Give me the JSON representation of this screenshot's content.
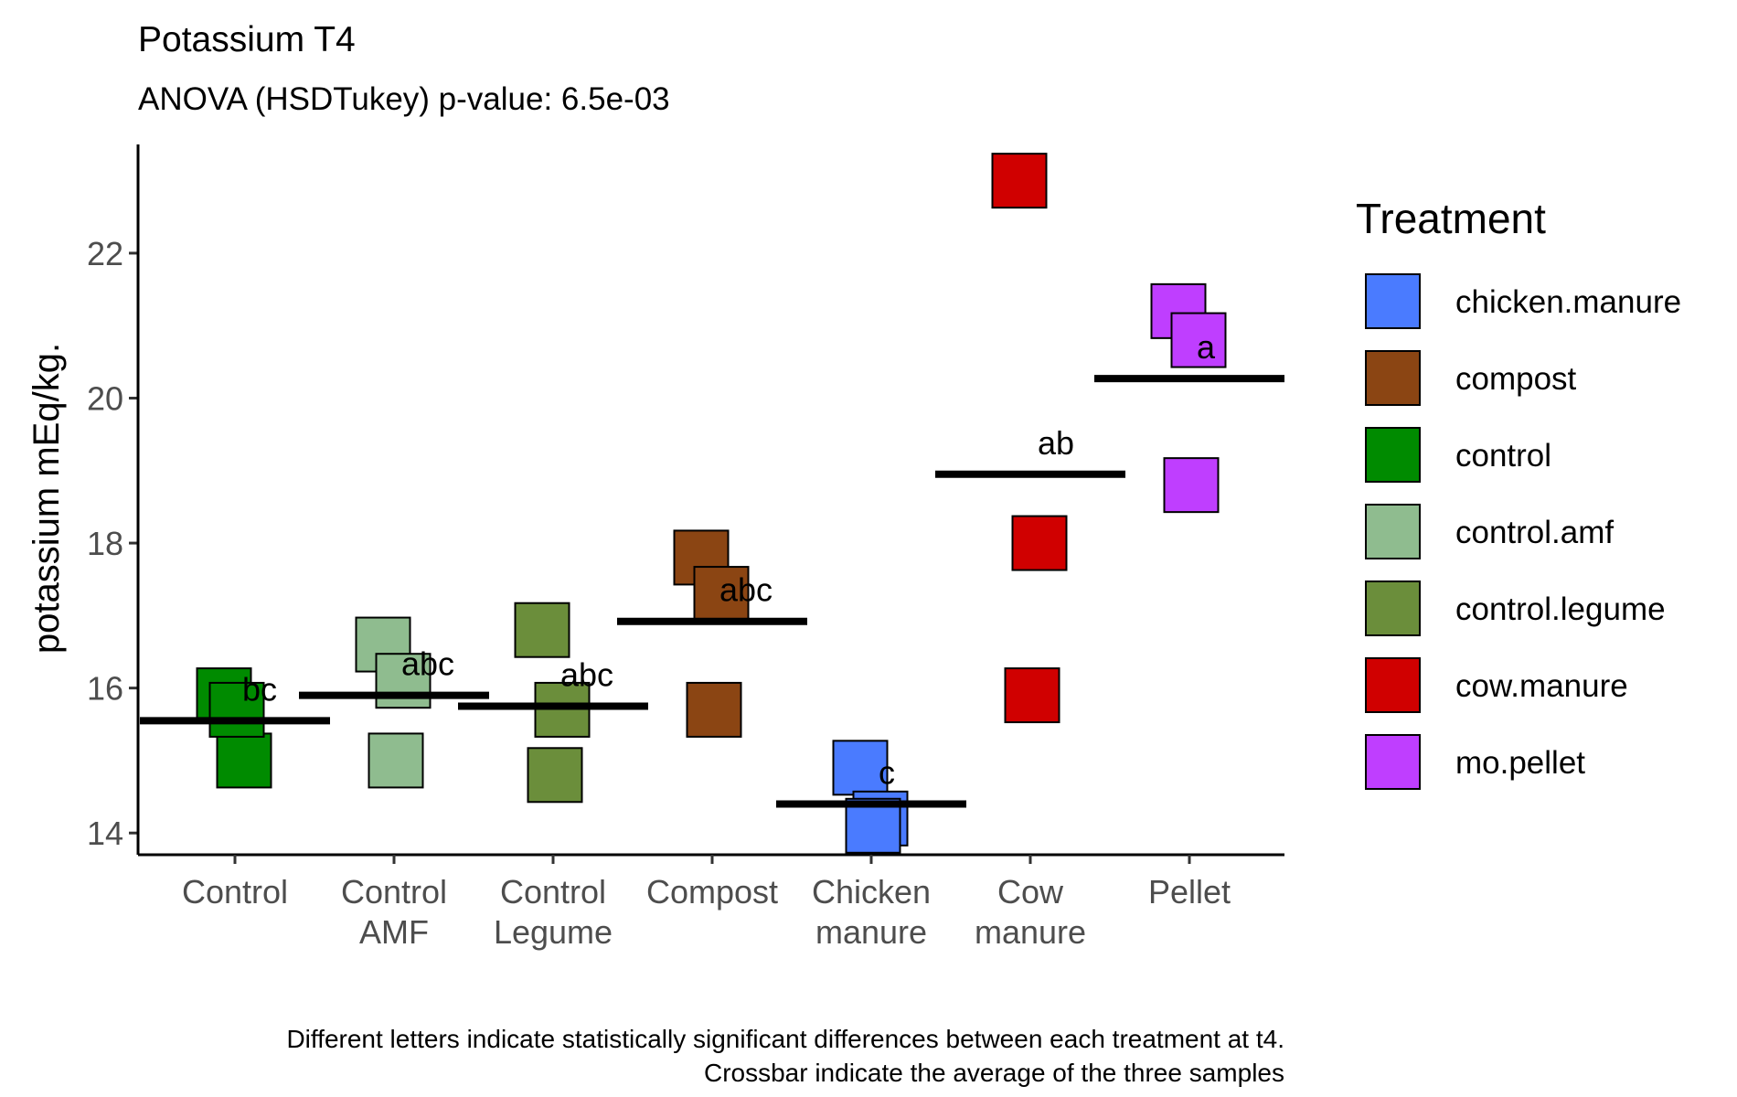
{
  "chart_data": {
    "type": "scatter",
    "title": "Potassium T4",
    "subtitle": "ANOVA (HSDTukey) p-value: 6.5e-03",
    "xlabel": "",
    "ylabel": "potassium mEq/kg.",
    "ylim": [
      13.7,
      23.5
    ],
    "yticks": [
      "14",
      "16",
      "18",
      "20",
      "22"
    ],
    "categories": [
      {
        "key": "Control",
        "lines": [
          "Control"
        ]
      },
      {
        "key": "Control AMF",
        "lines": [
          "Control",
          "AMF"
        ]
      },
      {
        "key": "Control Legume",
        "lines": [
          "Control",
          "Legume"
        ]
      },
      {
        "key": "Compost",
        "lines": [
          "Compost"
        ]
      },
      {
        "key": "Chicken manure",
        "lines": [
          "Chicken",
          "manure"
        ]
      },
      {
        "key": "Cow manure",
        "lines": [
          "Cow",
          "manure"
        ]
      },
      {
        "key": "Pellet",
        "lines": [
          "Pellet"
        ]
      }
    ],
    "groups": [
      {
        "category": "Control",
        "treatment": "control",
        "points": [
          15.9,
          15.0,
          15.7
        ],
        "mean": 15.55,
        "letter": "bc"
      },
      {
        "category": "Control AMF",
        "treatment": "control.amf",
        "points": [
          16.6,
          16.1,
          15.0
        ],
        "mean": 15.9,
        "letter": "abc"
      },
      {
        "category": "Control Legume",
        "treatment": "control.legume",
        "points": [
          16.8,
          15.7,
          14.8
        ],
        "mean": 15.75,
        "letter": "abc"
      },
      {
        "category": "Compost",
        "treatment": "compost",
        "points": [
          17.8,
          17.3,
          15.7
        ],
        "mean": 16.92,
        "letter": "abc"
      },
      {
        "category": "Chicken manure",
        "treatment": "chicken.manure",
        "points": [
          14.9,
          14.2,
          14.1
        ],
        "mean": 14.4,
        "letter": "c"
      },
      {
        "category": "Cow manure",
        "treatment": "cow.manure",
        "points": [
          23.0,
          18.0,
          15.9
        ],
        "mean": 18.95,
        "letter": "ab"
      },
      {
        "category": "Pellet",
        "treatment": "mo.pellet",
        "points": [
          21.2,
          20.8,
          18.8
        ],
        "mean": 20.27,
        "letter": "a"
      }
    ],
    "legend": {
      "title": "Treatment",
      "placement": "right",
      "entries": [
        {
          "label": "chicken.manure",
          "color": "#4a7bff"
        },
        {
          "label": "compost",
          "color": "#8b4513"
        },
        {
          "label": "control",
          "color": "#008b00"
        },
        {
          "label": "control.amf",
          "color": "#8fbc8f"
        },
        {
          "label": "control.legume",
          "color": "#6b8e3b"
        },
        {
          "label": "cow.manure",
          "color": "#d00000"
        },
        {
          "label": "mo.pellet",
          "color": "#bf3eff"
        }
      ]
    },
    "caption": [
      "Different letters indicate statistically significant differences between each treatment at t4.",
      "Crossbar indicate the average of the three samples"
    ],
    "grid": false
  }
}
